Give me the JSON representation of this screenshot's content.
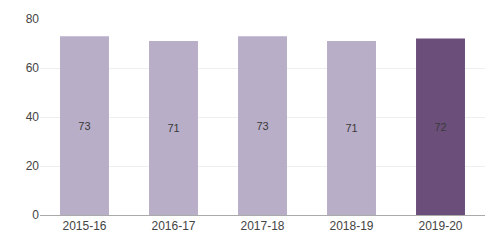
{
  "chart_data": {
    "type": "bar",
    "categories": [
      "2015-16",
      "2016-17",
      "2017-18",
      "2018-19",
      "2019-20"
    ],
    "values": [
      73,
      71,
      73,
      71,
      72
    ],
    "colors": [
      "#b8aec8",
      "#b8aec8",
      "#b8aec8",
      "#b8aec8",
      "#6b4f7a"
    ],
    "ylim": [
      0,
      80
    ],
    "yticks": [
      0,
      20,
      40,
      60,
      80
    ],
    "grid": true,
    "data_labels": true
  }
}
